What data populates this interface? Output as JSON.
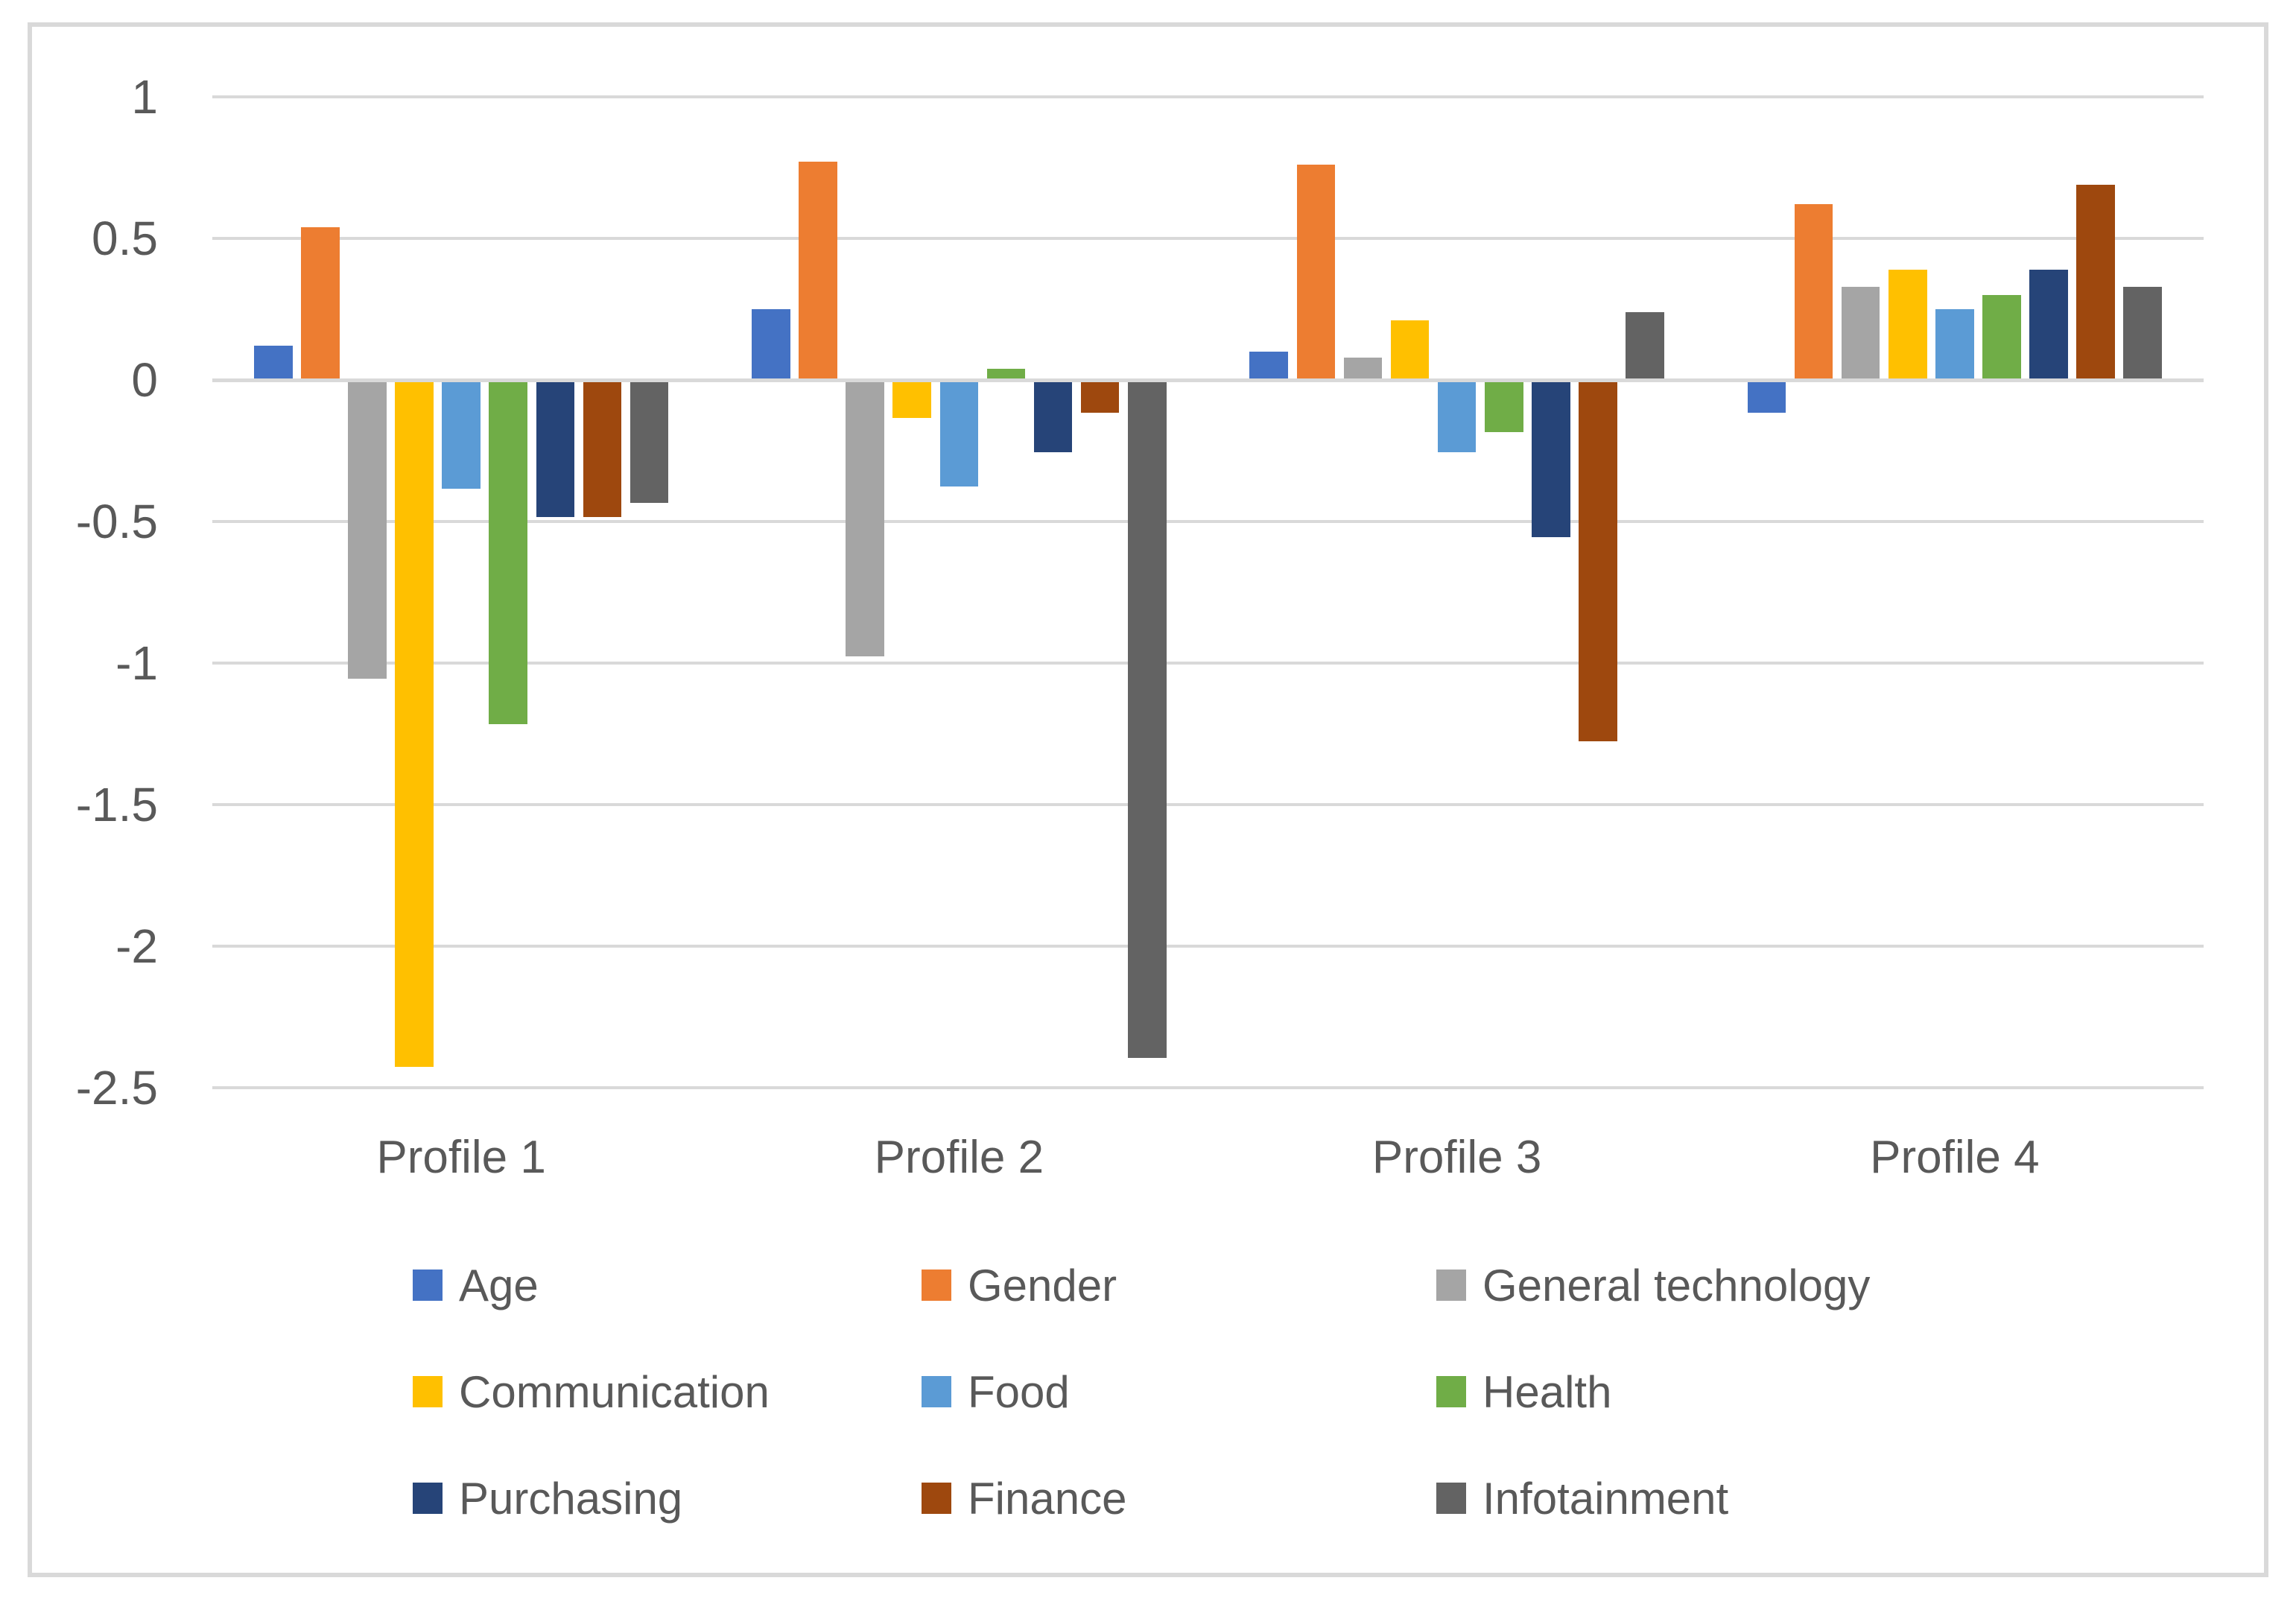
{
  "figure": {
    "background": "#FFFFFF",
    "border_color": "#D9D9D9",
    "text_color": "#595959"
  },
  "chart_data": {
    "type": "bar",
    "title": "",
    "xlabel": "",
    "ylabel": "",
    "categories": [
      "Profile 1",
      "Profile 2",
      "Profile 3",
      "Profile 4"
    ],
    "series": [
      {
        "name": "Age",
        "color": "#4472C4",
        "values": [
          0.12,
          0.25,
          0.1,
          -0.11
        ]
      },
      {
        "name": "Gender",
        "color": "#ED7D31",
        "values": [
          0.54,
          0.77,
          0.76,
          0.62
        ]
      },
      {
        "name": "General technology",
        "color": "#A5A5A5",
        "values": [
          -1.05,
          -0.97,
          0.08,
          0.33
        ]
      },
      {
        "name": "Communication",
        "color": "#FFC000",
        "values": [
          -2.42,
          -0.13,
          0.21,
          0.39
        ]
      },
      {
        "name": "Food",
        "color": "#5B9BD5",
        "values": [
          -0.38,
          -0.37,
          -0.25,
          0.25
        ]
      },
      {
        "name": "Health",
        "color": "#70AD47",
        "values": [
          -1.21,
          0.04,
          -0.18,
          0.3
        ]
      },
      {
        "name": "Purchasing",
        "color": "#264478",
        "values": [
          -0.48,
          -0.25,
          -0.55,
          0.39
        ]
      },
      {
        "name": "Finance",
        "color": "#9E480E",
        "values": [
          -0.48,
          -0.11,
          -1.27,
          0.69
        ]
      },
      {
        "name": "Infotainment",
        "color": "#636363",
        "values": [
          -0.43,
          -2.39,
          0.24,
          0.33
        ]
      }
    ],
    "ylim": [
      -2.5,
      1
    ],
    "ytick_step": 0.5,
    "yticks": [
      1,
      0.5,
      0,
      -0.5,
      -1,
      -1.5,
      -2,
      -2.5
    ],
    "ytick_labels": [
      "1",
      "0.5",
      "0",
      "-0.5",
      "-1",
      "-1.5",
      "-2",
      "-2.5"
    ],
    "grid": true,
    "gridline_color": "#D9D9D9",
    "legend_position": "bottom",
    "legend_rows": [
      [
        "Age",
        "Gender",
        "General technology"
      ],
      [
        "Communication",
        "Food",
        "Health"
      ],
      [
        "Purchasing",
        "Finance",
        "Infotainment"
      ]
    ]
  }
}
